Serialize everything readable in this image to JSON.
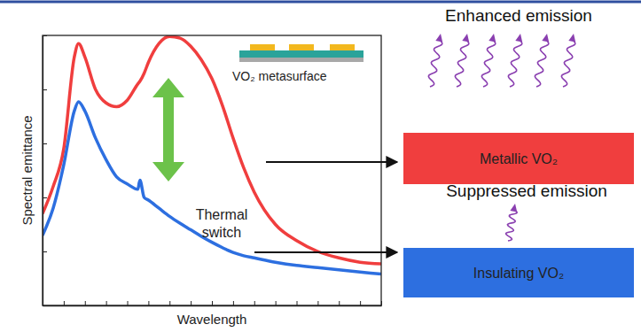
{
  "chart_data": {
    "type": "line",
    "x_label": "Wavelength",
    "y_label": "Spectral emittance",
    "x": [
      0,
      0.5,
      1,
      1.5,
      1.7,
      2,
      2.5,
      3,
      3.5,
      4,
      4.5,
      4.6,
      4.8,
      5,
      5.5,
      6,
      6.5,
      7,
      7.5,
      8,
      8.5,
      9,
      9.5,
      10,
      11,
      12,
      13,
      14,
      15,
      16
    ],
    "series": [
      {
        "color": "#f03e3e",
        "values": [
          1.7,
          2.2,
          2.9,
          4.6,
          4.85,
          4.6,
          4.0,
          3.75,
          3.68,
          3.8,
          4.1,
          4.15,
          4.3,
          4.5,
          4.85,
          4.98,
          4.95,
          4.8,
          4.55,
          4.2,
          3.7,
          3.1,
          2.55,
          2.1,
          1.5,
          1.2,
          1.0,
          0.88,
          0.8,
          0.77
        ]
      },
      {
        "color": "#2d6fe0",
        "values": [
          1.3,
          1.8,
          2.6,
          3.6,
          3.77,
          3.6,
          3.1,
          2.7,
          2.38,
          2.25,
          2.15,
          2.32,
          2.0,
          1.95,
          1.8,
          1.65,
          1.52,
          1.4,
          1.28,
          1.17,
          1.07,
          0.98,
          0.92,
          0.88,
          0.8,
          0.74,
          0.7,
          0.66,
          0.62,
          0.58
        ]
      }
    ],
    "xlim": [
      0,
      16
    ],
    "ylim": [
      0,
      5
    ],
    "xticks": [
      0,
      1,
      2,
      3,
      4,
      5,
      6,
      7,
      8,
      9,
      10,
      11,
      12,
      13,
      14,
      15,
      16
    ],
    "yticks": [
      0,
      1,
      2,
      3,
      4,
      5
    ],
    "tick_labels": false,
    "grid": false,
    "annotations": {
      "inset": "VO₂ metasurface",
      "switch": "Thermal switch",
      "enhanced": "Enhanced emission",
      "suppressed": "Suppressed emission",
      "metallic": "Metallic VO₂",
      "insulating": "Insulating VO₂"
    }
  }
}
